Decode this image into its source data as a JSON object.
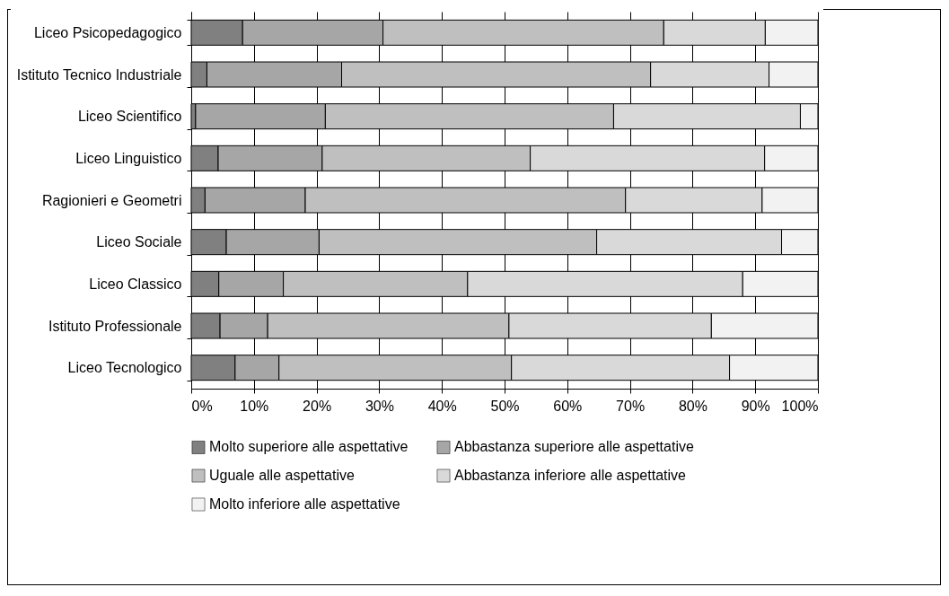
{
  "chart_data": {
    "type": "bar",
    "orientation": "horizontal",
    "stacked": true,
    "categories": [
      "Liceo Psicopedagogico",
      "Istituto Tecnico Industriale",
      "Liceo Scientifico",
      "Liceo Linguistico",
      "Ragionieri e Geometri",
      "Liceo Sociale",
      "Liceo Classico",
      "Istituto Professionale",
      "Liceo Tecnologico"
    ],
    "series": [
      {
        "name": "Molto superiore alle aspettative",
        "color": "#808080",
        "values": [
          8.2,
          2.5,
          0.7,
          4.3,
          2.2,
          5.6,
          4.4,
          4.6,
          7.0
        ]
      },
      {
        "name": "Abbastanza superiore alle aspettative",
        "color": "#a6a6a6",
        "values": [
          22.4,
          21.5,
          20.7,
          16.6,
          16.0,
          14.8,
          10.3,
          7.6,
          7.0
        ]
      },
      {
        "name": "Uguale alle aspettative",
        "color": "#bfbfbf",
        "values": [
          44.8,
          49.3,
          46.0,
          33.2,
          51.1,
          44.3,
          29.4,
          38.5,
          37.1
        ]
      },
      {
        "name": "Abbastanza inferiore alle aspettative",
        "color": "#d9d9d9",
        "values": [
          16.2,
          18.9,
          29.8,
          37.4,
          21.8,
          29.5,
          43.9,
          32.3,
          34.8
        ]
      },
      {
        "name": "Molto inferiore alle aspettative",
        "color": "#f2f2f2",
        "values": [
          8.4,
          7.8,
          2.8,
          8.5,
          8.9,
          5.8,
          12.0,
          17.0,
          14.1
        ]
      }
    ],
    "xlim": [
      0,
      100
    ],
    "xticks": [
      {
        "value": 0,
        "label": "0%"
      },
      {
        "value": 10,
        "label": "10%"
      },
      {
        "value": 20,
        "label": "20%"
      },
      {
        "value": 30,
        "label": "30%"
      },
      {
        "value": 40,
        "label": "40%"
      },
      {
        "value": 50,
        "label": "50%"
      },
      {
        "value": 60,
        "label": "60%"
      },
      {
        "value": 70,
        "label": "70%"
      },
      {
        "value": 80,
        "label": "80%"
      },
      {
        "value": 90,
        "label": "90%"
      },
      {
        "value": 100,
        "label": "100%"
      }
    ],
    "grid": "x",
    "legend": "bottom"
  }
}
